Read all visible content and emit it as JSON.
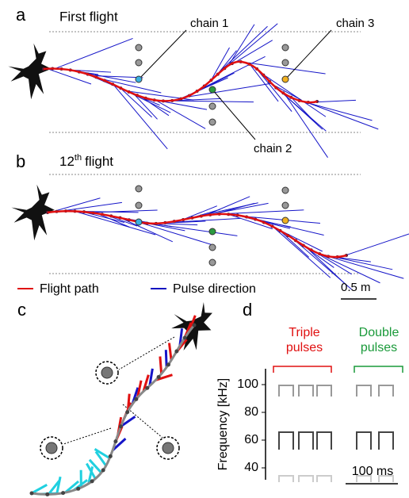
{
  "panel_a": {
    "label": "a",
    "title": "First flight",
    "chains": [
      "chain 1",
      "chain 2",
      "chain 3"
    ]
  },
  "panel_b": {
    "label": "b",
    "title": {
      "number": "12",
      "suffix": "th",
      "text": "flight"
    }
  },
  "legend": {
    "items": [
      "Flight path",
      "Pulse direction"
    ],
    "scale_bar": "0.5 m"
  },
  "panel_c": {
    "label": "c"
  },
  "panel_d": {
    "label": "d",
    "y_label": "Frequency [kHz]",
    "yticks": [
      100,
      80,
      60,
      40
    ],
    "groups": [
      [
        "Triple",
        "pulses"
      ],
      [
        "Double",
        "pulses"
      ]
    ],
    "scale_bar": "100 ms"
  }
}
